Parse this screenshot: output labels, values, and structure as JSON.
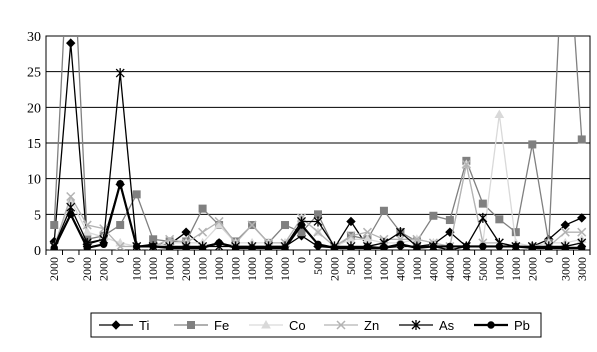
{
  "chart_data": {
    "type": "line",
    "title": "",
    "xlabel": "",
    "ylabel": "",
    "ylim": [
      0,
      30
    ],
    "yticks": [
      0,
      5,
      10,
      15,
      20,
      25,
      30
    ],
    "grid": "horizontal",
    "legend_position": "bottom",
    "categories": [
      "2000",
      "0",
      "2000",
      "2000",
      "0",
      "1000",
      "1000",
      "1000",
      "2000",
      "1000",
      "1000",
      "1000",
      "1000",
      "1000",
      "1000",
      "0",
      "500",
      "2000",
      "500",
      "1000",
      "1000",
      "4000",
      "1000",
      "4000",
      "4000",
      "4000",
      "5000",
      "1000",
      "1000",
      "2000",
      "0",
      "3000",
      "3000"
    ],
    "series": [
      {
        "name": "Ti",
        "color": "#000000",
        "marker": "diamond",
        "values": [
          1.2,
          29,
          0.8,
          1.5,
          9.2,
          0.5,
          0.8,
          0.8,
          2.5,
          0.5,
          1.0,
          0.5,
          0.5,
          0.5,
          0.5,
          2.0,
          0.5,
          0.3,
          4.0,
          0.5,
          0.3,
          0.5,
          0.5,
          0.8,
          2.5,
          0.5,
          0.5,
          0.5,
          0.5,
          0.5,
          1.5,
          3.5,
          4.5
        ]
      },
      {
        "name": "Fe",
        "color": "#808080",
        "marker": "square",
        "values": [
          3.5,
          50,
          1.5,
          2.0,
          3.5,
          7.8,
          1.5,
          1.2,
          1.2,
          5.8,
          3.5,
          1.2,
          3.5,
          1.0,
          3.5,
          2.5,
          5.0,
          0.3,
          2.0,
          1.5,
          5.5,
          2.5,
          1.2,
          4.8,
          4.2,
          12.5,
          6.5,
          4.3,
          2.5,
          14.8,
          1.0,
          50,
          15.5
        ]
      },
      {
        "name": "Co",
        "color": "#d9d9d9",
        "marker": "triangle",
        "values": [
          0.5,
          7.0,
          2.5,
          1.8,
          1.0,
          0.5,
          0.5,
          1.0,
          1.0,
          1.0,
          3.5,
          1.0,
          1.0,
          1.0,
          1.0,
          4.5,
          2.5,
          0.5,
          1.5,
          1.5,
          1.0,
          1.0,
          1.5,
          1.0,
          0.5,
          12.0,
          1.0,
          19.0,
          1.0,
          0.5,
          1.0,
          1.0,
          1.5
        ]
      },
      {
        "name": "Zn",
        "color": "#b3b3b3",
        "marker": "x",
        "values": [
          0.5,
          7.5,
          3.5,
          3.0,
          0.5,
          0.5,
          0.5,
          1.5,
          1.0,
          2.5,
          4.0,
          1.0,
          3.5,
          1.0,
          1.0,
          4.5,
          2.5,
          0.5,
          2.0,
          2.5,
          1.5,
          1.5,
          1.5,
          1.0,
          0.5,
          12.0,
          1.0,
          1.0,
          0.5,
          0.5,
          0.5,
          2.5,
          2.5
        ]
      },
      {
        "name": "As",
        "color": "#000000",
        "marker": "star",
        "values": [
          0.5,
          6.0,
          1.0,
          1.5,
          24.8,
          0.5,
          0.5,
          0.5,
          0.5,
          0.5,
          0.5,
          0.5,
          0.5,
          0.5,
          0.5,
          4.0,
          4.0,
          0.5,
          0.5,
          0.5,
          1.0,
          2.5,
          0.5,
          0.5,
          0.0,
          0.5,
          4.5,
          1.0,
          0.5,
          0.5,
          0.5,
          0.5,
          1.0
        ]
      },
      {
        "name": "Pb",
        "color": "#000000",
        "marker": "circle",
        "values": [
          0.3,
          5.0,
          0.3,
          0.8,
          9.3,
          0.5,
          0.5,
          0.3,
          0.3,
          0.3,
          1.0,
          0.3,
          0.3,
          0.3,
          0.3,
          3.5,
          0.8,
          0.3,
          0.3,
          0.3,
          0.3,
          0.8,
          0.3,
          0.5,
          0.5,
          0.5,
          0.5,
          0.5,
          0.5,
          0.3,
          0.3,
          0.3,
          0.3
        ]
      }
    ]
  }
}
